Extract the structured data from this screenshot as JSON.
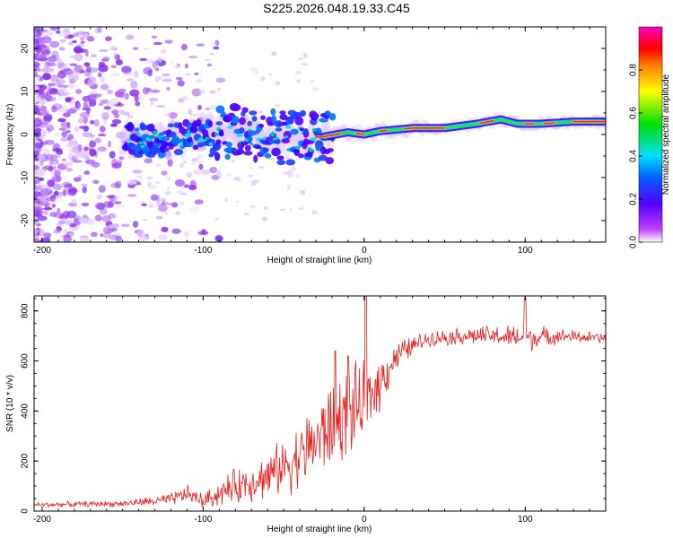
{
  "title": "S225.2026.048.19.33.C45",
  "colors": {
    "snr_line": "#e8201c",
    "background": "#ffffff",
    "axis": "#000000",
    "noise": "#8a2be2"
  },
  "chart_data": [
    {
      "type": "heatmap",
      "name": "spectrogram",
      "xlabel": "Height of straight line (km)",
      "ylabel": "Frequency (Hz)",
      "xlim": [
        -205,
        150
      ],
      "ylim": [
        -25,
        25
      ],
      "x_ticks": [
        -200,
        -100,
        0,
        100
      ],
      "x_tick_labels": [
        "-200",
        "-100",
        "0",
        "100"
      ],
      "y_ticks": [
        -20,
        -10,
        0,
        10,
        20
      ],
      "y_tick_labels": [
        "-20",
        "-10",
        "0",
        "10",
        "20"
      ],
      "ridge": {
        "description_x": [
          -145,
          -120,
          -100,
          -80,
          -60,
          -40,
          -25,
          -10,
          0,
          10,
          30,
          50,
          70,
          85,
          95,
          110,
          130,
          150
        ],
        "frequency_hz": [
          -1.5,
          -1.0,
          0.0,
          1.0,
          -0.5,
          -1.0,
          -0.5,
          0.5,
          0.0,
          0.8,
          1.5,
          1.5,
          2.5,
          3.5,
          2.5,
          2.5,
          3.0,
          3.0
        ]
      },
      "colorbar": {
        "label": "Normalized spectral amplitude",
        "range": [
          0,
          1
        ],
        "ticks": [
          0.0,
          0.2,
          0.4,
          0.6,
          0.8
        ],
        "tick_labels": [
          "0.0",
          "0.2",
          "0.4",
          "0.6",
          "0.8"
        ]
      }
    },
    {
      "type": "line",
      "name": "snr",
      "xlabel": "Height of straight line (km)",
      "ylabel": "SNR (10 * v/v)",
      "xlim": [
        -205,
        150
      ],
      "ylim": [
        0,
        860
      ],
      "x_ticks": [
        -200,
        -100,
        0,
        100
      ],
      "x_tick_labels": [
        "-200",
        "-100",
        "0",
        "100"
      ],
      "y_ticks": [
        0,
        200,
        400,
        600,
        800
      ],
      "y_tick_labels": [
        "0",
        "200",
        "400",
        "600",
        "800"
      ],
      "envelope": {
        "x": [
          -205,
          -150,
          -120,
          -110,
          -100,
          -80,
          -60,
          -40,
          -30,
          -20,
          -10,
          0,
          10,
          20,
          30,
          40,
          60,
          80,
          100,
          120,
          150
        ],
        "mean": [
          25,
          30,
          45,
          70,
          40,
          100,
          140,
          220,
          280,
          340,
          400,
          420,
          520,
          620,
          660,
          690,
          700,
          700,
          690,
          700,
          690
        ],
        "noise_amplitude": [
          10,
          12,
          25,
          35,
          30,
          70,
          90,
          130,
          160,
          180,
          180,
          160,
          110,
          60,
          40,
          30,
          35,
          40,
          55,
          30,
          20
        ]
      },
      "spikes": [
        {
          "x": 1,
          "y": 860
        },
        {
          "x": 100,
          "y": 850
        },
        {
          "x": -18,
          "y": 640
        },
        {
          "x": -10,
          "y": 620
        }
      ]
    }
  ]
}
